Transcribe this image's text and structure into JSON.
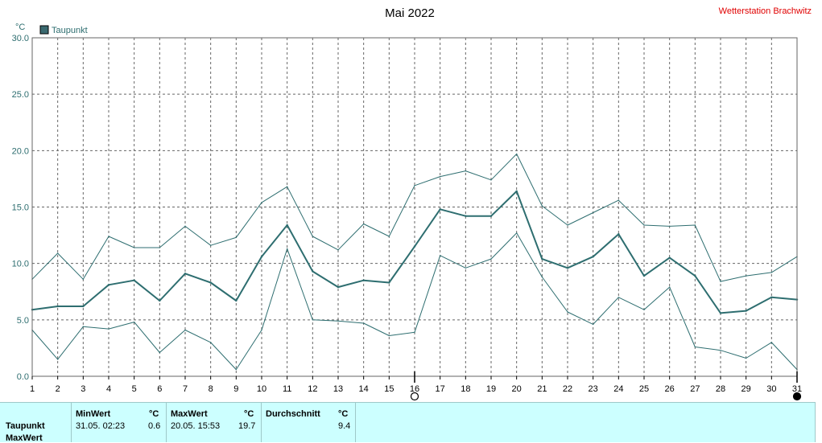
{
  "header": {
    "title": "Mai 2022",
    "station": "Wetterstation Brachwitz",
    "unit_label": "°C",
    "legend_label": "Taupunkt"
  },
  "colors": {
    "series": "#2e6e70",
    "legend_swatch": "#3a6a70",
    "station_text": "#e00000",
    "table_bg": "#ccffff",
    "grid": "#666666"
  },
  "chart_data": {
    "type": "line",
    "title": "Mai 2022",
    "ylabel": "°C",
    "ylim": [
      0,
      30
    ],
    "xlim": [
      1,
      31
    ],
    "grid": true,
    "legend_position": "top-left",
    "y_ticks": [
      "0.0",
      "5.0",
      "10.0",
      "15.0",
      "20.0",
      "25.0",
      "30.0"
    ],
    "x": [
      1,
      2,
      3,
      4,
      5,
      6,
      7,
      8,
      9,
      10,
      11,
      12,
      13,
      14,
      15,
      16,
      17,
      18,
      19,
      20,
      21,
      22,
      23,
      24,
      25,
      26,
      27,
      28,
      29,
      30,
      31
    ],
    "series": [
      {
        "name": "Taupunkt",
        "role": "mean",
        "values": [
          5.9,
          6.2,
          6.2,
          8.1,
          8.5,
          6.7,
          9.1,
          8.3,
          6.7,
          10.6,
          13.4,
          9.3,
          7.9,
          8.5,
          8.3,
          11.5,
          14.8,
          14.2,
          14.2,
          16.4,
          10.4,
          9.6,
          10.6,
          12.6,
          8.9,
          10.5,
          8.9,
          5.6,
          5.8,
          7.0,
          6.8
        ]
      },
      {
        "role": "max",
        "values": [
          8.6,
          10.9,
          8.6,
          12.4,
          11.4,
          11.4,
          13.3,
          11.6,
          12.3,
          15.4,
          16.8,
          12.4,
          11.2,
          13.5,
          12.4,
          16.9,
          17.7,
          18.2,
          17.4,
          19.7,
          15.1,
          13.4,
          14.5,
          15.6,
          13.4,
          13.3,
          13.4,
          8.4,
          8.9,
          9.2,
          10.6
        ]
      },
      {
        "role": "min",
        "values": [
          4.1,
          1.5,
          4.4,
          4.2,
          4.8,
          2.1,
          4.1,
          3.0,
          0.6,
          4.1,
          11.3,
          5.0,
          4.9,
          4.7,
          3.6,
          3.9,
          10.7,
          9.6,
          10.4,
          12.7,
          8.8,
          5.7,
          4.6,
          7.0,
          5.9,
          7.9,
          2.6,
          2.3,
          1.6,
          3.0,
          0.6
        ]
      }
    ],
    "markers": [
      {
        "day": 16,
        "symbol": "new-moon"
      },
      {
        "day": 31,
        "symbol": "full-moon"
      }
    ]
  },
  "table": {
    "row_label": "Taupunkt",
    "row_label_2": "MaxWert",
    "unit": "°C",
    "min_header": "MinWert",
    "max_header": "MaxWert",
    "avg_header": "Durchschnitt",
    "min_date": "31.05.  02:23",
    "min_value": "0.6",
    "max_date": "20.05.  15:53",
    "max_value": "19.7",
    "avg_value": "9.4"
  }
}
